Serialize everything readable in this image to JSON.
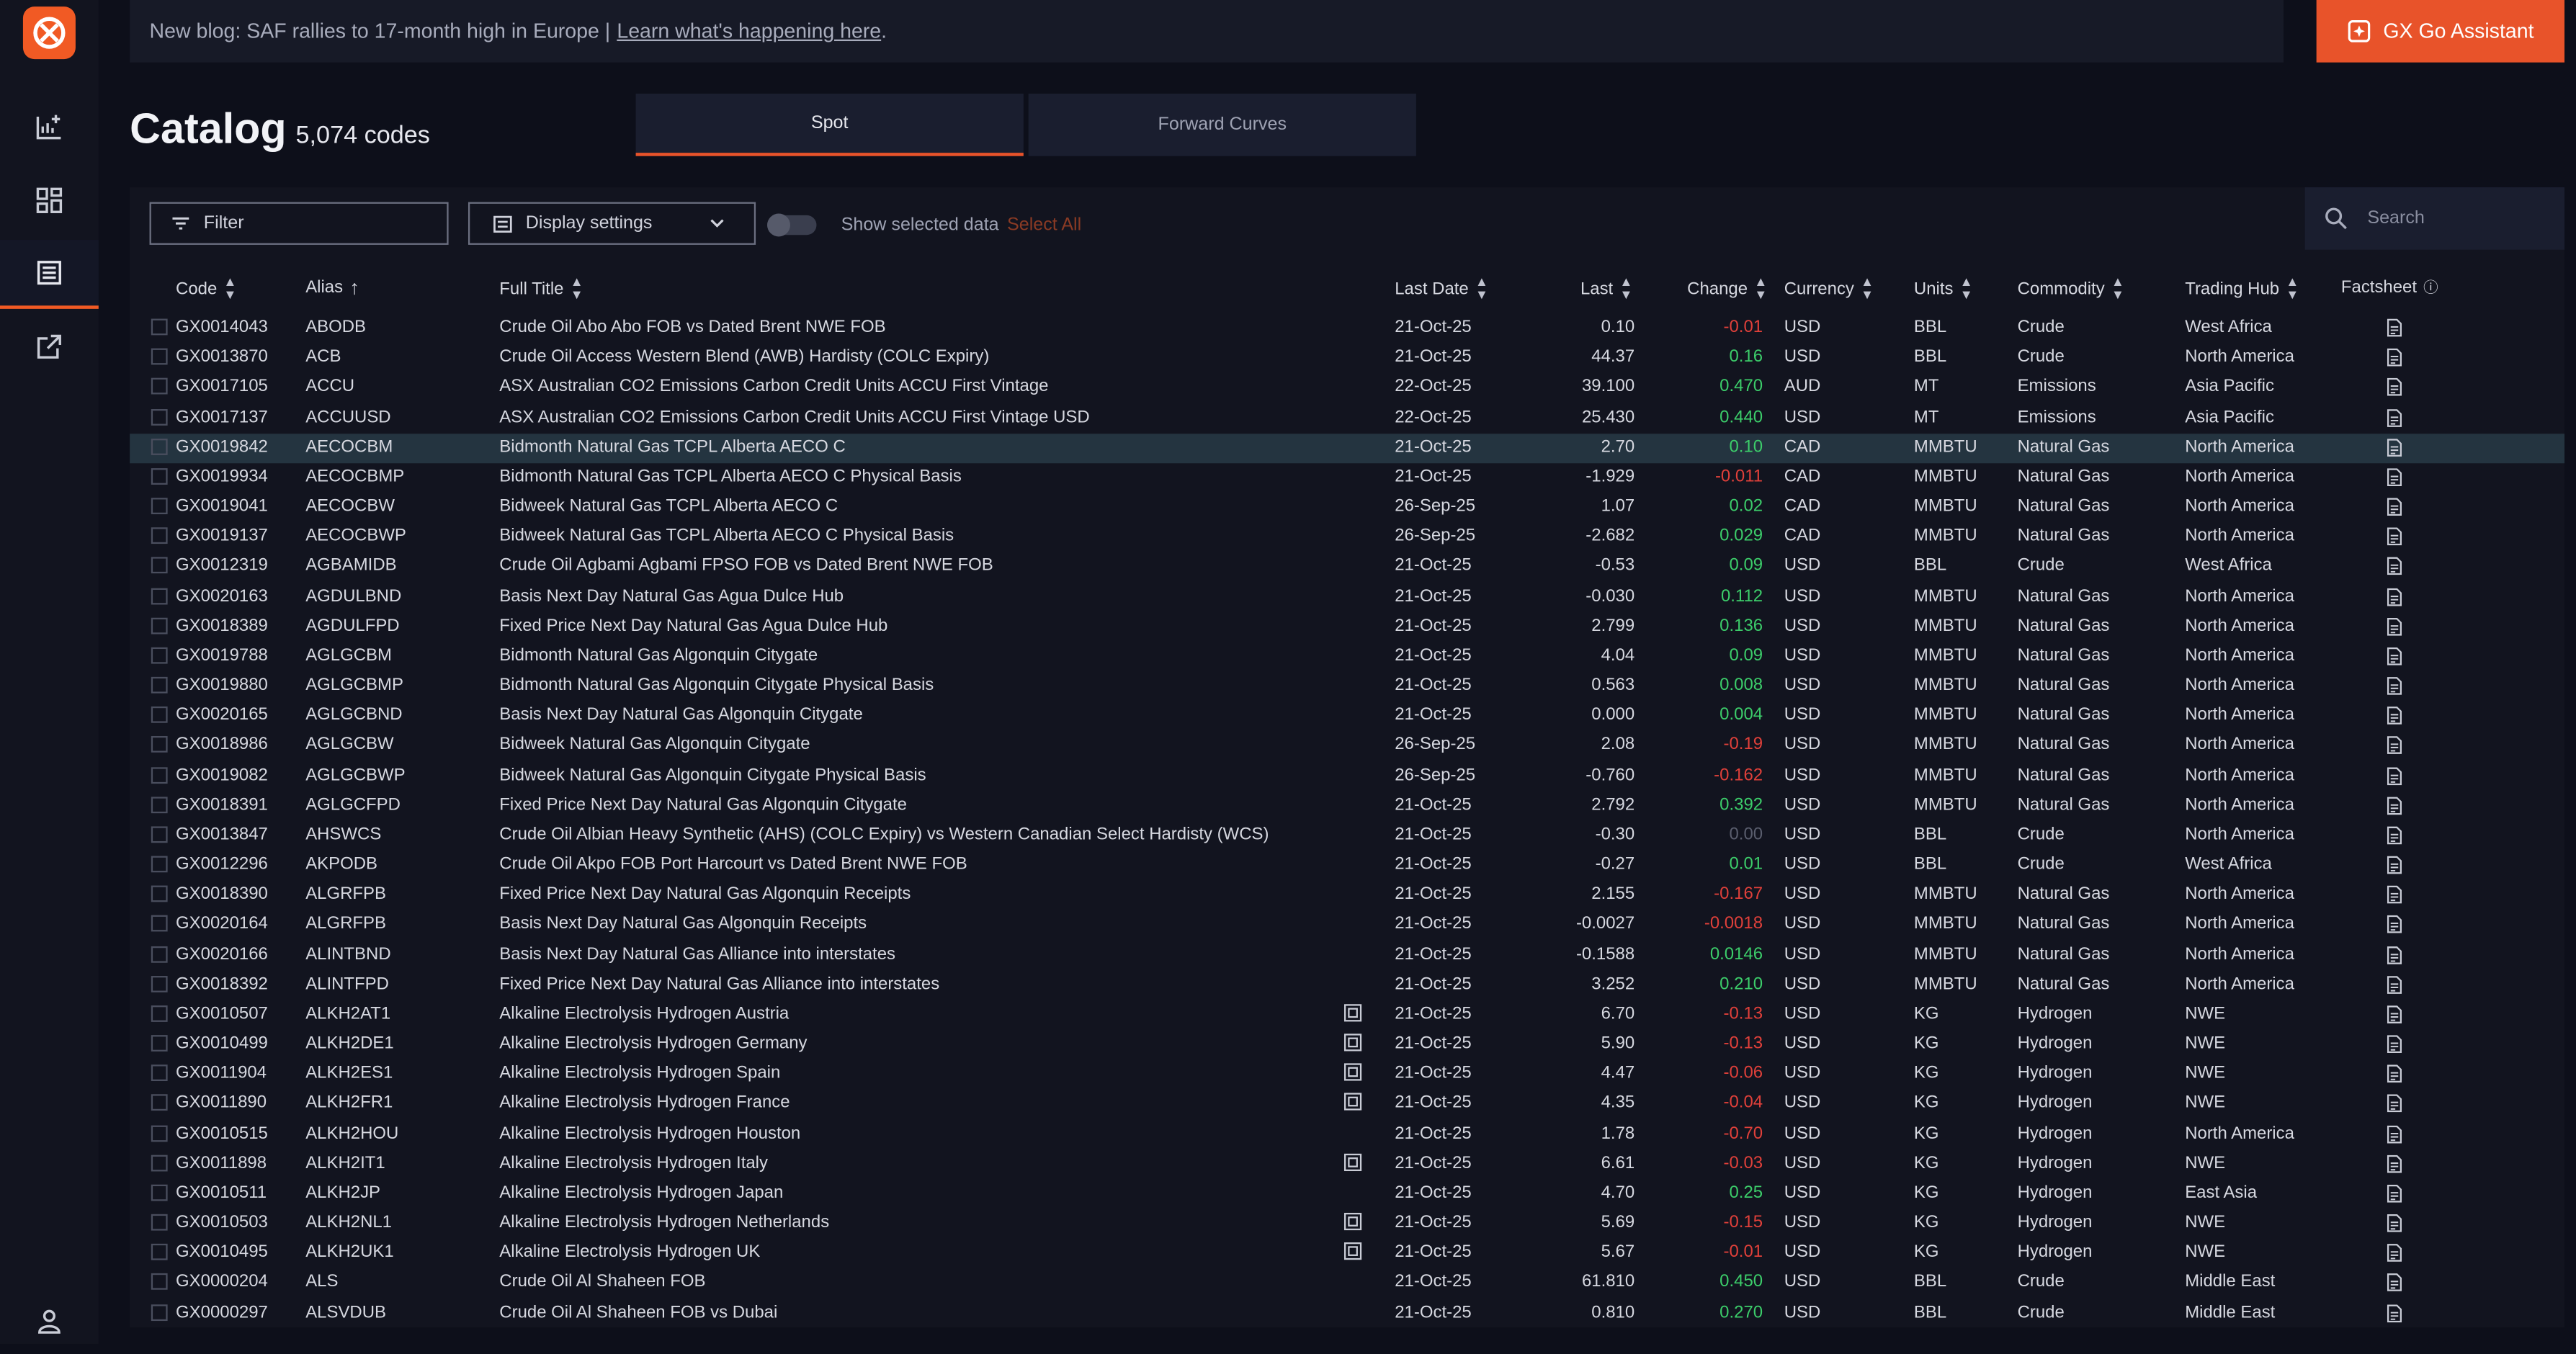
{
  "colors": {
    "accent": "#e8532a",
    "negative": "#e0403a",
    "positive": "#3ccd6a",
    "selected_row": "#243440"
  },
  "banner": {
    "text": "New blog: SAF rallies to 17-month high in Europe |",
    "link": "Learn what's happening here",
    "suffix": "."
  },
  "assistant_button": "GX Go Assistant",
  "title": "Catalog",
  "count": "5,074 codes",
  "tabs": [
    {
      "label": "Spot",
      "active": true
    },
    {
      "label": "Forward Curves",
      "active": false
    }
  ],
  "toolbar": {
    "filter": "Filter",
    "display_settings": "Display settings",
    "show_selected": "Show selected data",
    "select_all": "Select All",
    "search_placeholder": "Search"
  },
  "columns": {
    "code": "Code",
    "alias": "Alias",
    "full_title": "Full Title",
    "last_date": "Last Date",
    "last": "Last",
    "change": "Change",
    "currency": "Currency",
    "units": "Units",
    "commodity": "Commodity",
    "trading_hub": "Trading Hub",
    "factsheet": "Factsheet"
  },
  "sidebar_icons": [
    "chart-add-icon",
    "dashboard-icon",
    "catalog-icon",
    "external-link-icon",
    "user-icon"
  ],
  "rows": [
    {
      "code": "GX0014043",
      "alias": "ABODB",
      "title": "Crude Oil Abo Abo FOB vs Dated Brent NWE FOB",
      "date": "21-Oct-25",
      "last": "0.10",
      "change": "-0.01",
      "dir": "neg",
      "currency": "USD",
      "units": "BBL",
      "commodity": "Crude",
      "hub": "West Africa",
      "dup": false,
      "selected": false
    },
    {
      "code": "GX0013870",
      "alias": "ACB",
      "title": "Crude Oil Access Western Blend (AWB) Hardisty (COLC Expiry)",
      "date": "21-Oct-25",
      "last": "44.37",
      "change": "0.16",
      "dir": "pos",
      "currency": "USD",
      "units": "BBL",
      "commodity": "Crude",
      "hub": "North America",
      "dup": false,
      "selected": false
    },
    {
      "code": "GX0017105",
      "alias": "ACCU",
      "title": "ASX Australian CO2 Emissions Carbon Credit Units ACCU First Vintage",
      "date": "22-Oct-25",
      "last": "39.100",
      "change": "0.470",
      "dir": "pos",
      "currency": "AUD",
      "units": "MT",
      "commodity": "Emissions",
      "hub": "Asia Pacific",
      "dup": false,
      "selected": false
    },
    {
      "code": "GX0017137",
      "alias": "ACCUUSD",
      "title": "ASX Australian CO2 Emissions Carbon Credit Units ACCU First Vintage USD",
      "date": "22-Oct-25",
      "last": "25.430",
      "change": "0.440",
      "dir": "pos",
      "currency": "USD",
      "units": "MT",
      "commodity": "Emissions",
      "hub": "Asia Pacific",
      "dup": false,
      "selected": false
    },
    {
      "code": "GX0019842",
      "alias": "AECOCBM",
      "title": "Bidmonth Natural Gas TCPL Alberta AECO C",
      "date": "21-Oct-25",
      "last": "2.70",
      "change": "0.10",
      "dir": "pos",
      "currency": "CAD",
      "units": "MMBTU",
      "commodity": "Natural Gas",
      "hub": "North America",
      "dup": false,
      "selected": true
    },
    {
      "code": "GX0019934",
      "alias": "AECOCBMP",
      "title": "Bidmonth Natural Gas TCPL Alberta AECO C Physical Basis",
      "date": "21-Oct-25",
      "last": "-1.929",
      "change": "-0.011",
      "dir": "neg",
      "currency": "CAD",
      "units": "MMBTU",
      "commodity": "Natural Gas",
      "hub": "North America",
      "dup": false,
      "selected": false
    },
    {
      "code": "GX0019041",
      "alias": "AECOCBW",
      "title": "Bidweek Natural Gas TCPL Alberta AECO C",
      "date": "26-Sep-25",
      "last": "1.07",
      "change": "0.02",
      "dir": "pos",
      "currency": "CAD",
      "units": "MMBTU",
      "commodity": "Natural Gas",
      "hub": "North America",
      "dup": false,
      "selected": false
    },
    {
      "code": "GX0019137",
      "alias": "AECOCBWP",
      "title": "Bidweek Natural Gas TCPL Alberta AECO C Physical Basis",
      "date": "26-Sep-25",
      "last": "-2.682",
      "change": "0.029",
      "dir": "pos",
      "currency": "CAD",
      "units": "MMBTU",
      "commodity": "Natural Gas",
      "hub": "North America",
      "dup": false,
      "selected": false
    },
    {
      "code": "GX0012319",
      "alias": "AGBAMIDB",
      "title": "Crude Oil Agbami Agbami FPSO FOB vs Dated Brent NWE FOB",
      "date": "21-Oct-25",
      "last": "-0.53",
      "change": "0.09",
      "dir": "pos",
      "currency": "USD",
      "units": "BBL",
      "commodity": "Crude",
      "hub": "West Africa",
      "dup": false,
      "selected": false
    },
    {
      "code": "GX0020163",
      "alias": "AGDULBND",
      "title": "Basis Next Day Natural Gas Agua Dulce Hub",
      "date": "21-Oct-25",
      "last": "-0.030",
      "change": "0.112",
      "dir": "pos",
      "currency": "USD",
      "units": "MMBTU",
      "commodity": "Natural Gas",
      "hub": "North America",
      "dup": false,
      "selected": false
    },
    {
      "code": "GX0018389",
      "alias": "AGDULFPD",
      "title": "Fixed Price Next Day Natural Gas Agua Dulce Hub",
      "date": "21-Oct-25",
      "last": "2.799",
      "change": "0.136",
      "dir": "pos",
      "currency": "USD",
      "units": "MMBTU",
      "commodity": "Natural Gas",
      "hub": "North America",
      "dup": false,
      "selected": false
    },
    {
      "code": "GX0019788",
      "alias": "AGLGCBM",
      "title": "Bidmonth Natural Gas Algonquin Citygate",
      "date": "21-Oct-25",
      "last": "4.04",
      "change": "0.09",
      "dir": "pos",
      "currency": "USD",
      "units": "MMBTU",
      "commodity": "Natural Gas",
      "hub": "North America",
      "dup": false,
      "selected": false
    },
    {
      "code": "GX0019880",
      "alias": "AGLGCBMP",
      "title": "Bidmonth Natural Gas Algonquin Citygate Physical Basis",
      "date": "21-Oct-25",
      "last": "0.563",
      "change": "0.008",
      "dir": "pos",
      "currency": "USD",
      "units": "MMBTU",
      "commodity": "Natural Gas",
      "hub": "North America",
      "dup": false,
      "selected": false
    },
    {
      "code": "GX0020165",
      "alias": "AGLGCBND",
      "title": "Basis Next Day Natural Gas Algonquin Citygate",
      "date": "21-Oct-25",
      "last": "0.000",
      "change": "0.004",
      "dir": "pos",
      "currency": "USD",
      "units": "MMBTU",
      "commodity": "Natural Gas",
      "hub": "North America",
      "dup": false,
      "selected": false
    },
    {
      "code": "GX0018986",
      "alias": "AGLGCBW",
      "title": "Bidweek Natural Gas Algonquin Citygate",
      "date": "26-Sep-25",
      "last": "2.08",
      "change": "-0.19",
      "dir": "neg",
      "currency": "USD",
      "units": "MMBTU",
      "commodity": "Natural Gas",
      "hub": "North America",
      "dup": false,
      "selected": false
    },
    {
      "code": "GX0019082",
      "alias": "AGLGCBWP",
      "title": "Bidweek Natural Gas Algonquin Citygate Physical Basis",
      "date": "26-Sep-25",
      "last": "-0.760",
      "change": "-0.162",
      "dir": "neg",
      "currency": "USD",
      "units": "MMBTU",
      "commodity": "Natural Gas",
      "hub": "North America",
      "dup": false,
      "selected": false
    },
    {
      "code": "GX0018391",
      "alias": "AGLGCFPD",
      "title": "Fixed Price Next Day Natural Gas Algonquin Citygate",
      "date": "21-Oct-25",
      "last": "2.792",
      "change": "0.392",
      "dir": "pos",
      "currency": "USD",
      "units": "MMBTU",
      "commodity": "Natural Gas",
      "hub": "North America",
      "dup": false,
      "selected": false
    },
    {
      "code": "GX0013847",
      "alias": "AHSWCS",
      "title": "Crude Oil Albian Heavy Synthetic (AHS) (COLC Expiry) vs Western Canadian Select Hardisty (WCS)",
      "date": "21-Oct-25",
      "last": "-0.30",
      "change": "0.00",
      "dir": "zero",
      "currency": "USD",
      "units": "BBL",
      "commodity": "Crude",
      "hub": "North America",
      "dup": false,
      "selected": false
    },
    {
      "code": "GX0012296",
      "alias": "AKPODB",
      "title": "Crude Oil Akpo FOB Port Harcourt vs Dated Brent NWE FOB",
      "date": "21-Oct-25",
      "last": "-0.27",
      "change": "0.01",
      "dir": "pos",
      "currency": "USD",
      "units": "BBL",
      "commodity": "Crude",
      "hub": "West Africa",
      "dup": false,
      "selected": false
    },
    {
      "code": "GX0018390",
      "alias": "ALGRFPB",
      "title": "Fixed Price Next Day Natural Gas Algonquin Receipts",
      "date": "21-Oct-25",
      "last": "2.155",
      "change": "-0.167",
      "dir": "neg",
      "currency": "USD",
      "units": "MMBTU",
      "commodity": "Natural Gas",
      "hub": "North America",
      "dup": false,
      "selected": false
    },
    {
      "code": "GX0020164",
      "alias": "ALGRFPB",
      "title": "Basis Next Day Natural Gas Algonquin Receipts",
      "date": "21-Oct-25",
      "last": "-0.0027",
      "change": "-0.0018",
      "dir": "neg",
      "currency": "USD",
      "units": "MMBTU",
      "commodity": "Natural Gas",
      "hub": "North America",
      "dup": false,
      "selected": false
    },
    {
      "code": "GX0020166",
      "alias": "ALINTBND",
      "title": "Basis Next Day Natural Gas Alliance into interstates",
      "date": "21-Oct-25",
      "last": "-0.1588",
      "change": "0.0146",
      "dir": "pos",
      "currency": "USD",
      "units": "MMBTU",
      "commodity": "Natural Gas",
      "hub": "North America",
      "dup": false,
      "selected": false
    },
    {
      "code": "GX0018392",
      "alias": "ALINTFPD",
      "title": "Fixed Price Next Day Natural Gas Alliance into interstates",
      "date": "21-Oct-25",
      "last": "3.252",
      "change": "0.210",
      "dir": "pos",
      "currency": "USD",
      "units": "MMBTU",
      "commodity": "Natural Gas",
      "hub": "North America",
      "dup": false,
      "selected": false
    },
    {
      "code": "GX0010507",
      "alias": "ALKH2AT1",
      "title": "Alkaline Electrolysis Hydrogen Austria",
      "date": "21-Oct-25",
      "last": "6.70",
      "change": "-0.13",
      "dir": "neg",
      "currency": "USD",
      "units": "KG",
      "commodity": "Hydrogen",
      "hub": "NWE",
      "dup": true,
      "selected": false
    },
    {
      "code": "GX0010499",
      "alias": "ALKH2DE1",
      "title": "Alkaline Electrolysis Hydrogen Germany",
      "date": "21-Oct-25",
      "last": "5.90",
      "change": "-0.13",
      "dir": "neg",
      "currency": "USD",
      "units": "KG",
      "commodity": "Hydrogen",
      "hub": "NWE",
      "dup": true,
      "selected": false
    },
    {
      "code": "GX0011904",
      "alias": "ALKH2ES1",
      "title": "Alkaline Electrolysis Hydrogen Spain",
      "date": "21-Oct-25",
      "last": "4.47",
      "change": "-0.06",
      "dir": "neg",
      "currency": "USD",
      "units": "KG",
      "commodity": "Hydrogen",
      "hub": "NWE",
      "dup": true,
      "selected": false
    },
    {
      "code": "GX0011890",
      "alias": "ALKH2FR1",
      "title": "Alkaline Electrolysis Hydrogen France",
      "date": "21-Oct-25",
      "last": "4.35",
      "change": "-0.04",
      "dir": "neg",
      "currency": "USD",
      "units": "KG",
      "commodity": "Hydrogen",
      "hub": "NWE",
      "dup": true,
      "selected": false
    },
    {
      "code": "GX0010515",
      "alias": "ALKH2HOU",
      "title": "Alkaline Electrolysis Hydrogen Houston",
      "date": "21-Oct-25",
      "last": "1.78",
      "change": "-0.70",
      "dir": "neg",
      "currency": "USD",
      "units": "KG",
      "commodity": "Hydrogen",
      "hub": "North America",
      "dup": false,
      "selected": false
    },
    {
      "code": "GX0011898",
      "alias": "ALKH2IT1",
      "title": "Alkaline Electrolysis Hydrogen Italy",
      "date": "21-Oct-25",
      "last": "6.61",
      "change": "-0.03",
      "dir": "neg",
      "currency": "USD",
      "units": "KG",
      "commodity": "Hydrogen",
      "hub": "NWE",
      "dup": true,
      "selected": false
    },
    {
      "code": "GX0010511",
      "alias": "ALKH2JP",
      "title": "Alkaline Electrolysis Hydrogen Japan",
      "date": "21-Oct-25",
      "last": "4.70",
      "change": "0.25",
      "dir": "pos",
      "currency": "USD",
      "units": "KG",
      "commodity": "Hydrogen",
      "hub": "East Asia",
      "dup": false,
      "selected": false
    },
    {
      "code": "GX0010503",
      "alias": "ALKH2NL1",
      "title": "Alkaline Electrolysis Hydrogen Netherlands",
      "date": "21-Oct-25",
      "last": "5.69",
      "change": "-0.15",
      "dir": "neg",
      "currency": "USD",
      "units": "KG",
      "commodity": "Hydrogen",
      "hub": "NWE",
      "dup": true,
      "selected": false
    },
    {
      "code": "GX0010495",
      "alias": "ALKH2UK1",
      "title": "Alkaline Electrolysis Hydrogen UK",
      "date": "21-Oct-25",
      "last": "5.67",
      "change": "-0.01",
      "dir": "neg",
      "currency": "USD",
      "units": "KG",
      "commodity": "Hydrogen",
      "hub": "NWE",
      "dup": true,
      "selected": false
    },
    {
      "code": "GX0000204",
      "alias": "ALS",
      "title": "Crude Oil Al Shaheen FOB",
      "date": "21-Oct-25",
      "last": "61.810",
      "change": "0.450",
      "dir": "pos",
      "currency": "USD",
      "units": "BBL",
      "commodity": "Crude",
      "hub": "Middle East",
      "dup": false,
      "selected": false
    },
    {
      "code": "GX0000297",
      "alias": "ALSVDUB",
      "title": "Crude Oil Al Shaheen FOB vs Dubai",
      "date": "21-Oct-25",
      "last": "0.810",
      "change": "0.270",
      "dir": "pos",
      "currency": "USD",
      "units": "BBL",
      "commodity": "Crude",
      "hub": "Middle East",
      "dup": false,
      "selected": false
    }
  ]
}
